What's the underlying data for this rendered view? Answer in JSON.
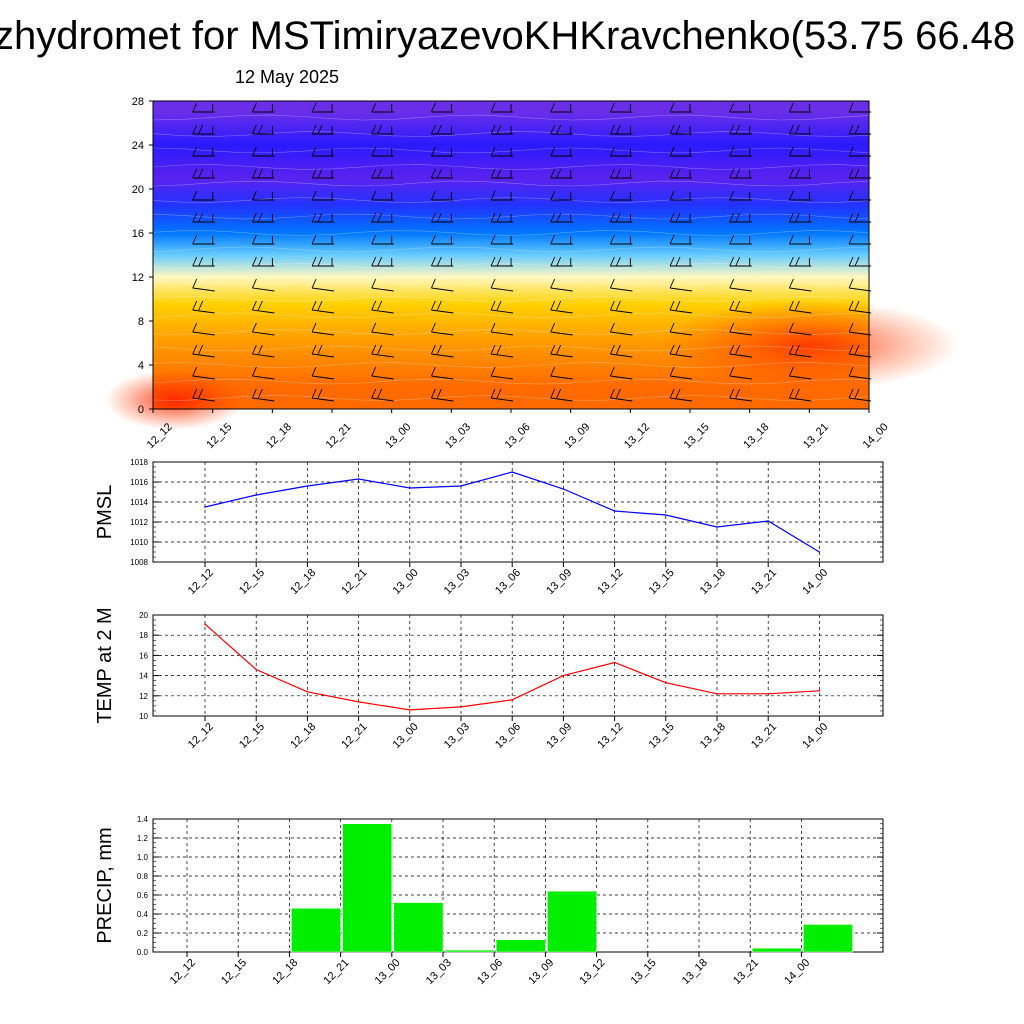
{
  "header": {
    "title": "zhydromet for MSTimiryazevoKHKravchenko(53.75 66.48",
    "date": "12 May 2025"
  },
  "colors": {
    "pmsl_line": "#0000ff",
    "temp_line": "#ff0000",
    "precip_bar": "#00ee00",
    "grid": "#000000"
  },
  "chart_data": [
    {
      "type": "heatmap",
      "title": "",
      "xlabel": "",
      "ylabel": "",
      "x": [
        "12_12",
        "12_15",
        "12_18",
        "12_21",
        "13_00",
        "13_03",
        "13_06",
        "13_09",
        "13_12",
        "13_15",
        "13_18",
        "13_21",
        "14_00"
      ],
      "ylim": [
        0,
        28
      ],
      "yticks": [
        "0",
        "4",
        "8",
        "12",
        "16",
        "20",
        "24",
        "28"
      ],
      "color_bands": [
        {
          "from": 0,
          "to": 4,
          "color": "#ff6a00"
        },
        {
          "from": 4,
          "to": 8,
          "color": "#ff9a00"
        },
        {
          "from": 8,
          "to": 11,
          "color": "#ffd000"
        },
        {
          "from": 11,
          "to": 13,
          "color": "#fff8c0"
        },
        {
          "from": 13,
          "to": 15,
          "color": "#66ccff"
        },
        {
          "from": 15,
          "to": 17,
          "color": "#0077ff"
        },
        {
          "from": 17,
          "to": 20,
          "color": "#2233ff"
        },
        {
          "from": 20,
          "to": 22,
          "color": "#5a22ee"
        },
        {
          "from": 22,
          "to": 26,
          "color": "#2a1aff"
        },
        {
          "from": 26,
          "to": 28,
          "color": "#6a2ee8"
        }
      ],
      "overlay": "wind barbs"
    },
    {
      "type": "line",
      "ylabel": "PMSL",
      "x": [
        "12_12",
        "12_15",
        "12_18",
        "12_21",
        "13_00",
        "13_03",
        "13_06",
        "13_09",
        "13_12",
        "13_15",
        "13_18",
        "13_21",
        "14_00"
      ],
      "values": [
        1013.5,
        1014.7,
        1015.6,
        1016.3,
        1015.4,
        1015.6,
        1017.0,
        1015.3,
        1013.1,
        1012.7,
        1011.5,
        1012.1,
        1009.0
      ],
      "ylim": [
        1008,
        1018
      ],
      "yticks": [
        "1008",
        "1010",
        "1012",
        "1014",
        "1016",
        "1018"
      ],
      "grid": true
    },
    {
      "type": "line",
      "ylabel": "TEMP at 2 M",
      "x": [
        "12_12",
        "12_15",
        "12_18",
        "12_21",
        "13_00",
        "13_03",
        "13_06",
        "13_09",
        "13_12",
        "13_15",
        "13_18",
        "13_21",
        "14_00"
      ],
      "values": [
        19.1,
        14.6,
        12.4,
        11.4,
        10.6,
        10.9,
        11.6,
        14.0,
        15.3,
        13.3,
        12.2,
        12.2,
        12.5
      ],
      "ylim": [
        10,
        20
      ],
      "yticks": [
        "10",
        "12",
        "14",
        "16",
        "18",
        "20"
      ],
      "grid": true
    },
    {
      "type": "bar",
      "ylabel": "PRECIP, mm",
      "categories": [
        "12_12",
        "12_15",
        "12_18",
        "12_21",
        "13_00",
        "13_03",
        "13_06",
        "13_09",
        "13_12",
        "13_15",
        "13_18",
        "13_21",
        "14_00"
      ],
      "values": [
        0,
        0,
        0.46,
        1.35,
        0.52,
        0.02,
        0.13,
        0.64,
        0,
        0,
        0,
        0.04,
        0.29
      ],
      "ylim": [
        0,
        1.4
      ],
      "yticks": [
        "0.0",
        "0.2",
        "0.4",
        "0.6",
        "0.8",
        "1.0",
        "1.2",
        "1.4"
      ],
      "grid": true
    }
  ]
}
